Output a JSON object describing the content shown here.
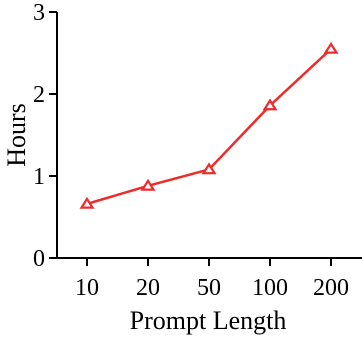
{
  "chart_data": {
    "type": "line",
    "title": "",
    "xlabel": "Prompt Length",
    "ylabel": "Hours",
    "categories": [
      "10",
      "20",
      "50",
      "100",
      "200"
    ],
    "series": [
      {
        "values": [
          0.66,
          0.88,
          1.08,
          1.86,
          2.55
        ],
        "color": "#ee2a2a",
        "marker": "triangle-open"
      }
    ],
    "ylim": [
      0,
      3
    ],
    "yticks": [
      "0",
      "1",
      "2",
      "3"
    ],
    "grid": false,
    "legend": "none"
  }
}
